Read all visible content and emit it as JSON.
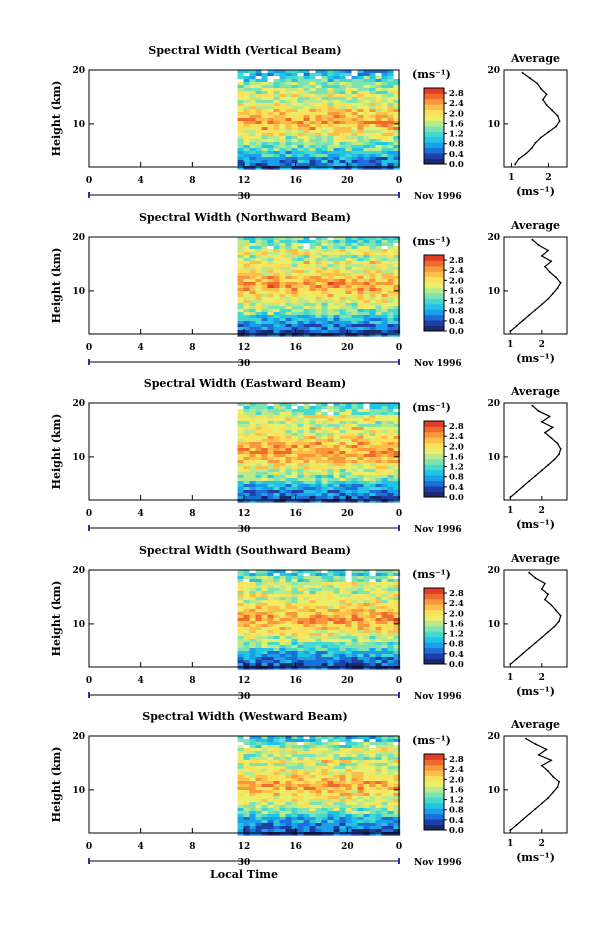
{
  "figure": {
    "month_label": "Nov 1996",
    "xaxis_title": "Local Time",
    "day_label": "30",
    "avg_title": "Average",
    "unit_label": "(ms⁻¹)",
    "height_label": "Height (km)",
    "colormap": [
      "#1a2a6c",
      "#1f3fa8",
      "#1c6fd6",
      "#1aa0e8",
      "#22c4e6",
      "#45d8cf",
      "#7ee3b0",
      "#b9e98a",
      "#e9ee6b",
      "#fbe15a",
      "#fcc04a",
      "#f8983c",
      "#ef6a31",
      "#df3f27"
    ]
  },
  "chart_data": [
    {
      "type": "heatmap",
      "title": "Spectral Width (Vertical Beam)",
      "x_ticks": [
        "0",
        "4",
        "8",
        "12",
        "16",
        "20",
        "0"
      ],
      "x_range": [
        0,
        24
      ],
      "data_start_hour": 11.5,
      "y_ticks": [
        "20",
        "10"
      ],
      "y_range": [
        2,
        20
      ],
      "colorbar_ticks": [
        "2.8",
        "2.4",
        "2.0",
        "1.6",
        "1.2",
        "0.8",
        "0.4",
        "0.0"
      ],
      "colorbar_range": [
        0,
        3.0
      ],
      "average_profile": {
        "xlabel": "(ms⁻¹)",
        "x_ticks": [
          "1",
          "2"
        ],
        "x_range": [
          0.8,
          2.5
        ],
        "y_ticks": [
          "20",
          "10"
        ],
        "points": [
          [
            1.1,
            2.5
          ],
          [
            1.2,
            3.5
          ],
          [
            1.4,
            4.5
          ],
          [
            1.55,
            5.5
          ],
          [
            1.65,
            6.5
          ],
          [
            1.8,
            7.5
          ],
          [
            2.0,
            8.5
          ],
          [
            2.2,
            9.5
          ],
          [
            2.3,
            10.5
          ],
          [
            2.25,
            11.5
          ],
          [
            2.1,
            12.5
          ],
          [
            1.95,
            13.5
          ],
          [
            1.85,
            14.5
          ],
          [
            1.95,
            15.5
          ],
          [
            1.8,
            16.5
          ],
          [
            1.7,
            17.5
          ],
          [
            1.5,
            18.5
          ],
          [
            1.3,
            19.5
          ]
        ]
      }
    },
    {
      "type": "heatmap",
      "title": "Spectral Width (Northward Beam)",
      "x_ticks": [
        "0",
        "4",
        "8",
        "12",
        "16",
        "20",
        "0"
      ],
      "x_range": [
        0,
        24
      ],
      "data_start_hour": 11.5,
      "y_ticks": [
        "20",
        "10"
      ],
      "y_range": [
        2,
        20
      ],
      "colorbar_ticks": [
        "2.8",
        "2.4",
        "2.0",
        "1.6",
        "1.2",
        "0.8",
        "0.4",
        "0.0"
      ],
      "colorbar_range": [
        0,
        3.0
      ],
      "average_profile": {
        "xlabel": "(ms⁻¹)",
        "x_ticks": [
          "1",
          "2"
        ],
        "x_range": [
          0.8,
          2.8
        ],
        "y_ticks": [
          "20",
          "10"
        ],
        "points": [
          [
            1.0,
            2.5
          ],
          [
            1.2,
            3.5
          ],
          [
            1.4,
            4.5
          ],
          [
            1.6,
            5.5
          ],
          [
            1.8,
            6.5
          ],
          [
            2.0,
            7.5
          ],
          [
            2.2,
            8.5
          ],
          [
            2.35,
            9.5
          ],
          [
            2.5,
            10.5
          ],
          [
            2.6,
            11.5
          ],
          [
            2.45,
            12.5
          ],
          [
            2.25,
            13.5
          ],
          [
            2.1,
            14.5
          ],
          [
            2.3,
            15.5
          ],
          [
            2.0,
            16.5
          ],
          [
            2.2,
            17.5
          ],
          [
            1.9,
            18.5
          ],
          [
            1.7,
            19.5
          ]
        ]
      }
    },
    {
      "type": "heatmap",
      "title": "Spectral Width (Eastward Beam)",
      "x_ticks": [
        "0",
        "4",
        "8",
        "12",
        "16",
        "20",
        "0"
      ],
      "x_range": [
        0,
        24
      ],
      "data_start_hour": 11.5,
      "y_ticks": [
        "20",
        "10"
      ],
      "y_range": [
        2,
        20
      ],
      "colorbar_ticks": [
        "2.8",
        "2.4",
        "2.0",
        "1.6",
        "1.2",
        "0.8",
        "0.4",
        "0.0"
      ],
      "colorbar_range": [
        0,
        3.0
      ],
      "average_profile": {
        "xlabel": "(ms⁻¹)",
        "x_ticks": [
          "1",
          "2"
        ],
        "x_range": [
          0.8,
          2.8
        ],
        "y_ticks": [
          "20",
          "10"
        ],
        "points": [
          [
            1.0,
            2.5
          ],
          [
            1.2,
            3.5
          ],
          [
            1.4,
            4.5
          ],
          [
            1.6,
            5.5
          ],
          [
            1.8,
            6.5
          ],
          [
            2.0,
            7.5
          ],
          [
            2.2,
            8.5
          ],
          [
            2.4,
            9.5
          ],
          [
            2.55,
            10.5
          ],
          [
            2.6,
            11.5
          ],
          [
            2.5,
            12.5
          ],
          [
            2.3,
            13.5
          ],
          [
            2.1,
            14.5
          ],
          [
            2.35,
            15.5
          ],
          [
            2.0,
            16.5
          ],
          [
            2.25,
            17.5
          ],
          [
            1.9,
            18.5
          ],
          [
            1.7,
            19.5
          ]
        ]
      }
    },
    {
      "type": "heatmap",
      "title": "Spectral Width (Southward Beam)",
      "x_ticks": [
        "0",
        "4",
        "8",
        "12",
        "16",
        "20",
        "0"
      ],
      "x_range": [
        0,
        24
      ],
      "data_start_hour": 11.5,
      "y_ticks": [
        "20",
        "10"
      ],
      "y_range": [
        2,
        20
      ],
      "colorbar_ticks": [
        "2.8",
        "2.4",
        "2.0",
        "1.6",
        "1.2",
        "0.8",
        "0.4",
        "0.0"
      ],
      "colorbar_range": [
        0,
        3.0
      ],
      "average_profile": {
        "xlabel": "(ms⁻¹)",
        "x_ticks": [
          "1",
          "2"
        ],
        "x_range": [
          0.8,
          2.8
        ],
        "y_ticks": [
          "20",
          "10"
        ],
        "points": [
          [
            1.0,
            2.5
          ],
          [
            1.2,
            3.5
          ],
          [
            1.4,
            4.5
          ],
          [
            1.6,
            5.5
          ],
          [
            1.8,
            6.5
          ],
          [
            2.0,
            7.5
          ],
          [
            2.2,
            8.5
          ],
          [
            2.4,
            9.5
          ],
          [
            2.55,
            10.5
          ],
          [
            2.6,
            11.5
          ],
          [
            2.45,
            12.5
          ],
          [
            2.3,
            13.5
          ],
          [
            2.1,
            14.5
          ],
          [
            2.2,
            15.5
          ],
          [
            2.0,
            16.5
          ],
          [
            2.1,
            17.5
          ],
          [
            1.8,
            18.5
          ],
          [
            1.6,
            19.5
          ]
        ]
      }
    },
    {
      "type": "heatmap",
      "title": "Spectral Width (Westward Beam)",
      "x_ticks": [
        "0",
        "4",
        "8",
        "12",
        "16",
        "20",
        "0"
      ],
      "x_range": [
        0,
        24
      ],
      "data_start_hour": 11.5,
      "y_ticks": [
        "20",
        "10"
      ],
      "y_range": [
        2,
        20
      ],
      "colorbar_ticks": [
        "2.8",
        "2.4",
        "2.0",
        "1.6",
        "1.2",
        "0.8",
        "0.4",
        "0.0"
      ],
      "colorbar_range": [
        0,
        3.0
      ],
      "average_profile": {
        "xlabel": "(ms⁻¹)",
        "x_ticks": [
          "1",
          "2"
        ],
        "x_range": [
          0.8,
          2.8
        ],
        "y_ticks": [
          "20",
          "10"
        ],
        "points": [
          [
            1.0,
            2.5
          ],
          [
            1.2,
            3.5
          ],
          [
            1.4,
            4.5
          ],
          [
            1.6,
            5.5
          ],
          [
            1.8,
            6.5
          ],
          [
            2.0,
            7.5
          ],
          [
            2.2,
            8.5
          ],
          [
            2.35,
            9.5
          ],
          [
            2.5,
            10.5
          ],
          [
            2.55,
            11.5
          ],
          [
            2.35,
            12.5
          ],
          [
            2.2,
            13.5
          ],
          [
            2.0,
            14.5
          ],
          [
            2.3,
            15.5
          ],
          [
            1.9,
            16.5
          ],
          [
            2.15,
            17.5
          ],
          [
            1.8,
            18.5
          ],
          [
            1.5,
            19.5
          ]
        ]
      }
    }
  ]
}
